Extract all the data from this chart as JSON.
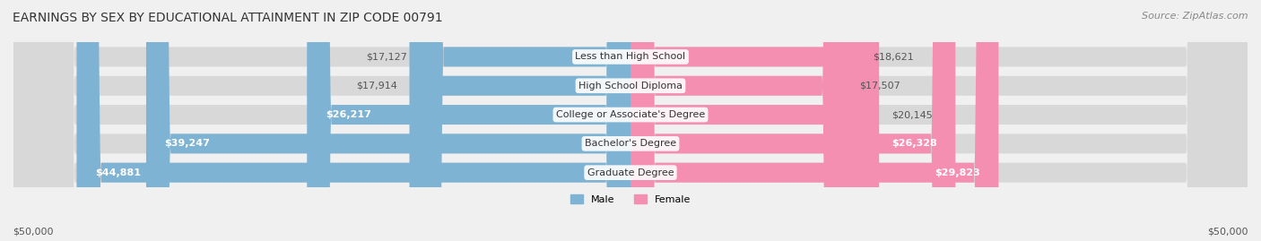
{
  "title": "EARNINGS BY SEX BY EDUCATIONAL ATTAINMENT IN ZIP CODE 00791",
  "source": "Source: ZipAtlas.com",
  "categories": [
    "Less than High School",
    "High School Diploma",
    "College or Associate's Degree",
    "Bachelor's Degree",
    "Graduate Degree"
  ],
  "male_values": [
    17127,
    17914,
    26217,
    39247,
    44881
  ],
  "female_values": [
    18621,
    17507,
    20145,
    26328,
    29823
  ],
  "male_labels": [
    "$17,127",
    "$17,914",
    "$26,217",
    "$39,247",
    "$44,881"
  ],
  "female_labels": [
    "$18,621",
    "$17,507",
    "$20,145",
    "$26,328",
    "$29,823"
  ],
  "male_color": "#7fb3d3",
  "female_color": "#f48fb1",
  "max_value": 50000,
  "axis_label_left": "$50,000",
  "axis_label_right": "$50,000",
  "background_color": "#f0f0f0",
  "bar_bg_color": "#e8e8e8",
  "title_fontsize": 10,
  "source_fontsize": 8,
  "label_fontsize": 8,
  "category_fontsize": 8
}
